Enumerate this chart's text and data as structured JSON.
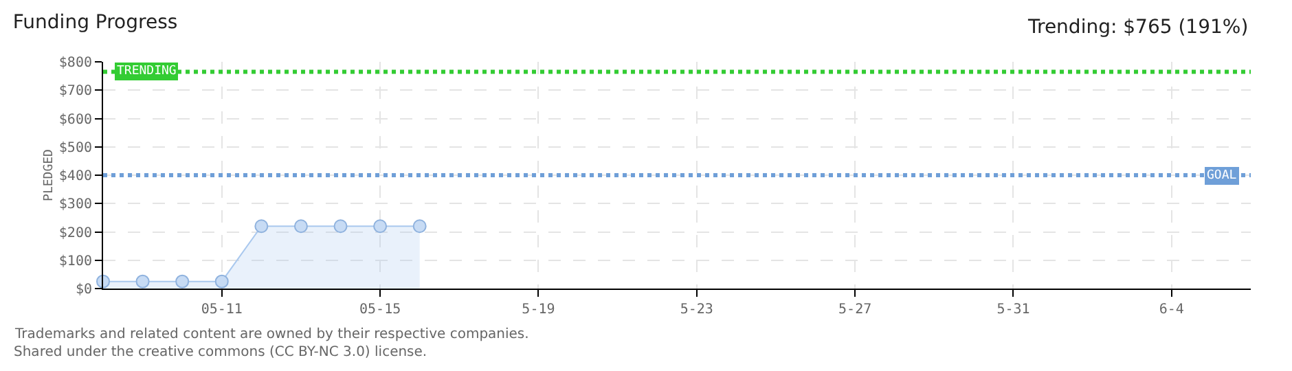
{
  "chart_data": {
    "type": "area",
    "title": "Funding Progress",
    "ylabel": "PLEDGED",
    "annotations": [
      "Trending: $765 (191%)",
      "Trademarks and related content are owned by their respective companies.",
      "Shared under the creative commons (CC BY-NC 3.0) license."
    ],
    "x": [
      "--05-08",
      "--05-09",
      "--05-10",
      "--05-11",
      "--05-12",
      "--05-13",
      "--05-14",
      "--05-15",
      "--05-16"
    ],
    "series": [
      {
        "color": "#a9c8ee",
        "values": [
          25,
          25,
          25,
          25,
          220,
          220,
          220,
          220,
          220
        ]
      }
    ],
    "xlim": [
      "--05-08",
      "--06-06"
    ],
    "xticks": [
      {
        "value": "--05-11",
        "label": "05-11"
      },
      {
        "value": "--05-15",
        "label": "05-15"
      },
      {
        "value": "--05-19",
        "label": "5-19"
      },
      {
        "value": "--05-23",
        "label": "5-23"
      },
      {
        "value": "--05-27",
        "label": "5-27"
      },
      {
        "value": "--05-31",
        "label": "5-31"
      },
      {
        "value": "--06-04",
        "label": "6-4"
      }
    ],
    "ylim": [
      0,
      800
    ],
    "yticks": [
      {
        "value": 0,
        "label": "$0"
      },
      {
        "value": 100,
        "label": "$100"
      },
      {
        "value": 200,
        "label": "$200"
      },
      {
        "value": 300,
        "label": "$300"
      },
      {
        "value": 400,
        "label": "$400"
      },
      {
        "value": 500,
        "label": "$500"
      },
      {
        "value": 600,
        "label": "$600"
      },
      {
        "value": 700,
        "label": "$700"
      },
      {
        "value": 800,
        "label": "$800"
      }
    ],
    "ref_lines": [
      {
        "axis": "y",
        "value": 765,
        "label": "TRENDING",
        "color": "#33cc33",
        "line_style": "dotted"
      },
      {
        "axis": "y",
        "value": 400,
        "label": "GOAL",
        "color": "#6f9fd8",
        "line_style": "dotted"
      }
    ],
    "grid": true,
    "marker": "circle",
    "line_style": "solid"
  }
}
